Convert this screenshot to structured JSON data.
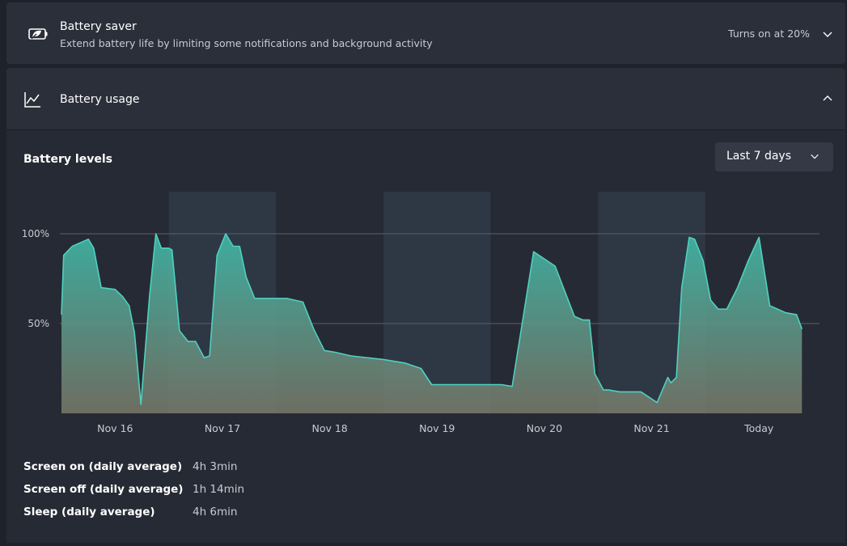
{
  "battery_saver": {
    "title": "Battery saver",
    "subtitle": "Extend battery life by limiting some notifications and background activity",
    "state": "Turns on at 20%",
    "icon": "battery-saver-leaf-icon"
  },
  "battery_usage": {
    "title": "Battery usage",
    "icon": "line-chart-icon",
    "expanded": true
  },
  "levels": {
    "title": "Battery levels",
    "range_selected": "Last 7 days"
  },
  "chart_data": {
    "type": "area",
    "y_tick_labels": [
      "100%",
      "50%"
    ],
    "y_ticks": [
      100,
      50
    ],
    "ylim": [
      0,
      100
    ],
    "x_tick_labels": [
      "Nov 16",
      "Nov 17",
      "Nov 18",
      "Nov 19",
      "Nov 20",
      "Nov 21",
      "Today"
    ],
    "grid": true,
    "fill_color_top": "#3fb9a8",
    "fill_color_bottom": "#7a7a6a",
    "line_color": "#4fd1bf",
    "shaded_day_bands": [
      1,
      3,
      5
    ],
    "series": [
      {
        "x": [
          0,
          0.02,
          0.1,
          0.25,
          0.3,
          0.37,
          0.5,
          0.57,
          0.63,
          0.68,
          0.74,
          0.82,
          0.88,
          0.93,
          1.0,
          1.03,
          1.1,
          1.18,
          1.25,
          1.33,
          1.38,
          1.45,
          1.53,
          1.6,
          1.66,
          1.72,
          1.8,
          1.88,
          1.95,
          2.0,
          2.05,
          2.1,
          2.25,
          2.35,
          2.45,
          2.55,
          2.7,
          3.0,
          3.2,
          3.35,
          3.45,
          3.55,
          3.65,
          3.8,
          3.95,
          4.1,
          4.2,
          4.4,
          4.6,
          4.78,
          4.86,
          4.92,
          4.97,
          5.05,
          5.1,
          5.2,
          5.3,
          5.4,
          5.55,
          5.65,
          5.68,
          5.73,
          5.78,
          5.85,
          5.9,
          5.98,
          6.05,
          6.12,
          6.2,
          6.3,
          6.4,
          6.5,
          6.6,
          6.75,
          6.85,
          6.9
        ],
        "values": [
          55,
          88,
          93,
          97,
          92,
          70,
          69,
          65,
          60,
          45,
          5,
          65,
          100,
          92,
          92,
          91,
          46,
          40,
          40,
          31,
          32,
          88,
          100,
          93,
          93,
          76,
          64,
          64,
          64,
          64,
          64,
          64,
          62,
          47,
          35,
          34,
          32,
          30,
          28,
          25,
          16,
          16,
          16,
          16,
          16,
          16,
          15,
          90,
          82,
          54,
          52,
          52,
          22,
          13,
          13,
          12,
          12,
          12,
          6,
          20,
          17,
          20,
          70,
          98,
          97,
          85,
          63,
          58,
          58,
          70,
          85,
          98,
          60,
          56,
          55,
          47
        ]
      }
    ]
  },
  "stats": [
    {
      "label": "Screen on (daily average)",
      "value": "4h 3min"
    },
    {
      "label": "Screen off (daily average)",
      "value": "1h 14min"
    },
    {
      "label": "Sleep (daily average)",
      "value": "4h 6min"
    }
  ]
}
